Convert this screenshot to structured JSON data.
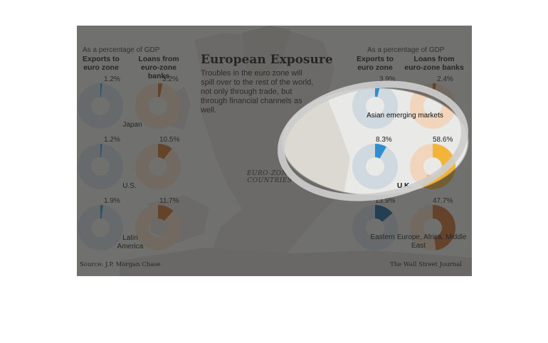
{
  "chart_data": {
    "type": "pie",
    "title": "European Exposure",
    "subtitle": "Troubles in the euro zone will spill over to the rest of the world, not only through trade, but through financial channels as well.",
    "unit_note": "As a percentage of GDP",
    "map_label": "EURO-ZONE COUNTRIES",
    "source": "Source: J.P. Morgan Chase",
    "credit": "The Wall Street Journal",
    "series": [
      {
        "name": "Exports to euro zone",
        "color": "#2e8fd0"
      },
      {
        "name": "Loans from euro-zone banks",
        "color": "#c9651e"
      }
    ],
    "regions": [
      {
        "name": "Japan",
        "exports": 1.2,
        "loans": 3.2
      },
      {
        "name": "U.S.",
        "exports": 1.2,
        "loans": 10.5
      },
      {
        "name": "Latin America",
        "exports": 1.9,
        "loans": 11.7
      },
      {
        "name": "Asian emerging markets",
        "exports": 3.9,
        "loans": 2.4
      },
      {
        "name": "",
        "exports": 8.3,
        "loans": 58.6
      },
      {
        "name": "Eastern Europe, Africa, Middle East",
        "exports": 13.9,
        "loans": 47.7
      }
    ],
    "second_right_row_region_label": "U.K."
  },
  "labels": {
    "gdp_left": "As a percentage of GDP",
    "gdp_right": "As a percentage of GDP",
    "exports_head": "Exports to euro zone",
    "loans_head": "Loans from euro-zone banks",
    "pcts": {
      "japan_exports": "1.2%",
      "japan_loans": "3.2%",
      "us_exports": "1.2%",
      "us_loans": "10.5%",
      "latam_exports": "1.9%",
      "latam_loans": "11.7%",
      "asia_exports": "3.9%",
      "asia_loans": "2.4%",
      "uk_exports": "8.3%",
      "uk_loans": "58.6%",
      "eeur_exports": "13.9%",
      "eeur_loans": "47.7%"
    },
    "region_names": {
      "japan": "Japan",
      "us": "U.S.",
      "latam": "Latin America",
      "asia": "Asian emerging markets",
      "uk": "U.K.",
      "eeur": "Eastern Europe, Africa, Middle East"
    }
  },
  "colors": {
    "exports": "#2e8fd0",
    "exports_dark": "#0e5d96",
    "loans": "#c9651e",
    "loans_highlight": "#f2b53a",
    "remainder_exports": "#cfd9df",
    "remainder_loans": "#f1d6bd",
    "land": "#d8d6d0",
    "sea": "#eaeaea",
    "annotation_ring": "#cdcdcd"
  }
}
